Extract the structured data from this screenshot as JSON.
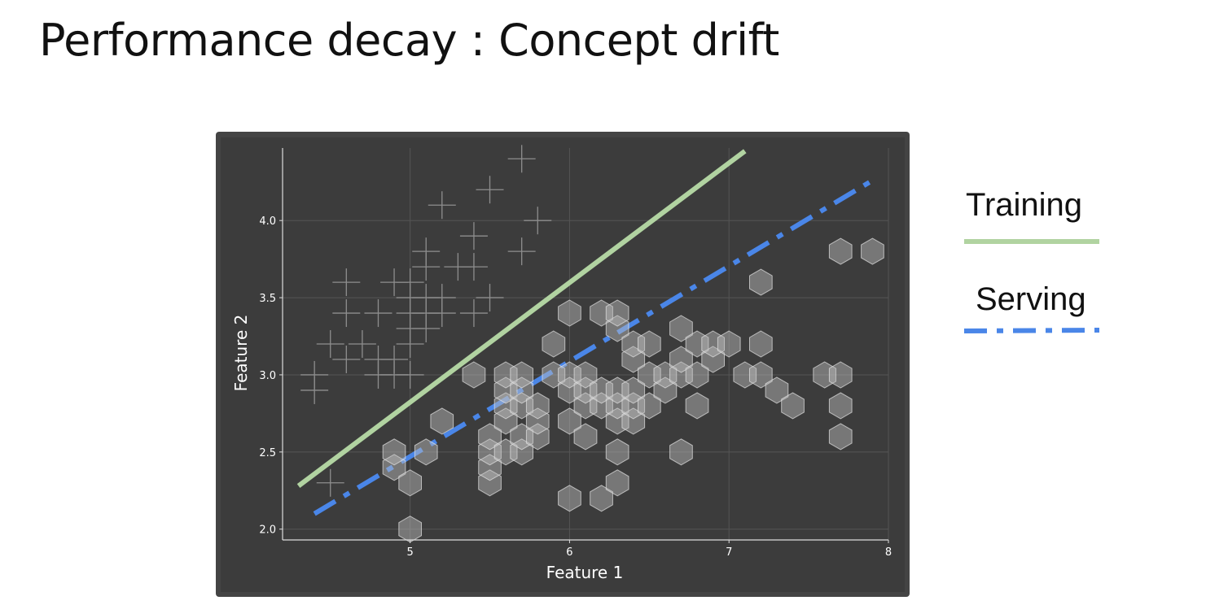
{
  "title": "Performance decay : Concept drift",
  "colors": {
    "training": "#b1d3a1",
    "serving": "#4a86e8",
    "plot_bg": "#3c3c3c",
    "frame": "#4a4a4a",
    "marker": "#bfbfbf"
  },
  "legend": {
    "items": [
      {
        "label": "Training",
        "style": "solid",
        "color": "#b1d3a1"
      },
      {
        "label": "Serving",
        "style": "dash-dot",
        "color": "#4a86e8"
      }
    ]
  },
  "chart_data": {
    "type": "scatter",
    "xlabel": "Feature 1",
    "ylabel": "Feature 2",
    "xlim": [
      4.2,
      8.0
    ],
    "ylim": [
      1.93,
      4.47
    ],
    "xticks": [
      {
        "value": 5,
        "label": "5"
      },
      {
        "value": 6,
        "label": "6"
      },
      {
        "value": 7,
        "label": "7"
      },
      {
        "value": 8,
        "label": "8"
      }
    ],
    "yticks": [
      {
        "value": 2.0,
        "label": "2.0"
      },
      {
        "value": 2.5,
        "label": "2.5"
      },
      {
        "value": 3.0,
        "label": "3.0"
      },
      {
        "value": 3.5,
        "label": "3.5"
      },
      {
        "value": 4.0,
        "label": "4.0"
      }
    ],
    "grid": true,
    "series": [
      {
        "marker": "cross",
        "points": [
          [
            4.4,
            2.9
          ],
          [
            4.4,
            3.0
          ],
          [
            4.5,
            3.2
          ],
          [
            4.6,
            3.1
          ],
          [
            4.6,
            3.4
          ],
          [
            4.6,
            3.6
          ],
          [
            4.7,
            3.2
          ],
          [
            4.8,
            3.0
          ],
          [
            4.8,
            3.1
          ],
          [
            4.8,
            3.4
          ],
          [
            4.9,
            3.0
          ],
          [
            4.9,
            3.1
          ],
          [
            4.9,
            3.6
          ],
          [
            5.0,
            3.0
          ],
          [
            5.0,
            3.2
          ],
          [
            5.0,
            3.3
          ],
          [
            5.0,
            3.4
          ],
          [
            5.0,
            3.5
          ],
          [
            5.0,
            3.6
          ],
          [
            5.1,
            3.3
          ],
          [
            5.1,
            3.4
          ],
          [
            5.1,
            3.5
          ],
          [
            5.1,
            3.7
          ],
          [
            5.1,
            3.8
          ],
          [
            5.2,
            3.4
          ],
          [
            5.2,
            3.5
          ],
          [
            5.2,
            4.1
          ],
          [
            5.3,
            3.7
          ],
          [
            5.4,
            3.4
          ],
          [
            5.4,
            3.7
          ],
          [
            5.4,
            3.9
          ],
          [
            5.5,
            3.5
          ],
          [
            5.5,
            4.2
          ],
          [
            5.7,
            3.8
          ],
          [
            5.7,
            4.4
          ],
          [
            5.8,
            4.0
          ],
          [
            4.5,
            2.3
          ]
        ]
      },
      {
        "marker": "hexagon",
        "points": [
          [
            4.9,
            2.4
          ],
          [
            4.9,
            2.5
          ],
          [
            5.0,
            2.0
          ],
          [
            5.0,
            2.3
          ],
          [
            5.1,
            2.5
          ],
          [
            5.2,
            2.7
          ],
          [
            5.4,
            3.0
          ],
          [
            5.5,
            2.3
          ],
          [
            5.5,
            2.4
          ],
          [
            5.5,
            2.5
          ],
          [
            5.5,
            2.6
          ],
          [
            5.6,
            2.5
          ],
          [
            5.6,
            2.7
          ],
          [
            5.6,
            2.8
          ],
          [
            5.6,
            2.9
          ],
          [
            5.6,
            3.0
          ],
          [
            5.7,
            2.5
          ],
          [
            5.7,
            2.6
          ],
          [
            5.7,
            2.8
          ],
          [
            5.7,
            2.9
          ],
          [
            5.7,
            3.0
          ],
          [
            5.8,
            2.6
          ],
          [
            5.8,
            2.7
          ],
          [
            5.8,
            2.8
          ],
          [
            5.9,
            3.0
          ],
          [
            5.9,
            3.2
          ],
          [
            6.0,
            2.2
          ],
          [
            6.0,
            2.7
          ],
          [
            6.0,
            2.9
          ],
          [
            6.0,
            3.0
          ],
          [
            6.0,
            3.4
          ],
          [
            6.1,
            2.6
          ],
          [
            6.1,
            2.8
          ],
          [
            6.1,
            2.9
          ],
          [
            6.1,
            3.0
          ],
          [
            6.2,
            2.2
          ],
          [
            6.2,
            2.8
          ],
          [
            6.2,
            2.9
          ],
          [
            6.2,
            3.4
          ],
          [
            6.3,
            2.3
          ],
          [
            6.3,
            2.5
          ],
          [
            6.3,
            2.7
          ],
          [
            6.3,
            2.8
          ],
          [
            6.3,
            2.9
          ],
          [
            6.3,
            3.3
          ],
          [
            6.3,
            3.4
          ],
          [
            6.4,
            2.7
          ],
          [
            6.4,
            2.8
          ],
          [
            6.4,
            2.9
          ],
          [
            6.4,
            3.1
          ],
          [
            6.4,
            3.2
          ],
          [
            6.5,
            2.8
          ],
          [
            6.5,
            3.0
          ],
          [
            6.5,
            3.2
          ],
          [
            6.6,
            2.9
          ],
          [
            6.6,
            3.0
          ],
          [
            6.7,
            2.5
          ],
          [
            6.7,
            3.0
          ],
          [
            6.7,
            3.1
          ],
          [
            6.7,
            3.3
          ],
          [
            6.8,
            2.8
          ],
          [
            6.8,
            3.0
          ],
          [
            6.8,
            3.2
          ],
          [
            6.9,
            3.1
          ],
          [
            6.9,
            3.2
          ],
          [
            7.0,
            3.2
          ],
          [
            7.1,
            3.0
          ],
          [
            7.2,
            3.0
          ],
          [
            7.2,
            3.2
          ],
          [
            7.2,
            3.6
          ],
          [
            7.3,
            2.9
          ],
          [
            7.4,
            2.8
          ],
          [
            7.6,
            3.0
          ],
          [
            7.7,
            2.6
          ],
          [
            7.7,
            2.8
          ],
          [
            7.7,
            3.0
          ],
          [
            7.7,
            3.8
          ],
          [
            7.9,
            3.8
          ]
        ]
      }
    ],
    "lines": [
      {
        "name": "Training",
        "style": "solid",
        "from": [
          4.3,
          2.28
        ],
        "to": [
          7.1,
          4.45
        ]
      },
      {
        "name": "Serving",
        "style": "dash-dot",
        "from": [
          4.4,
          2.1
        ],
        "to": [
          7.9,
          4.26
        ]
      }
    ]
  }
}
